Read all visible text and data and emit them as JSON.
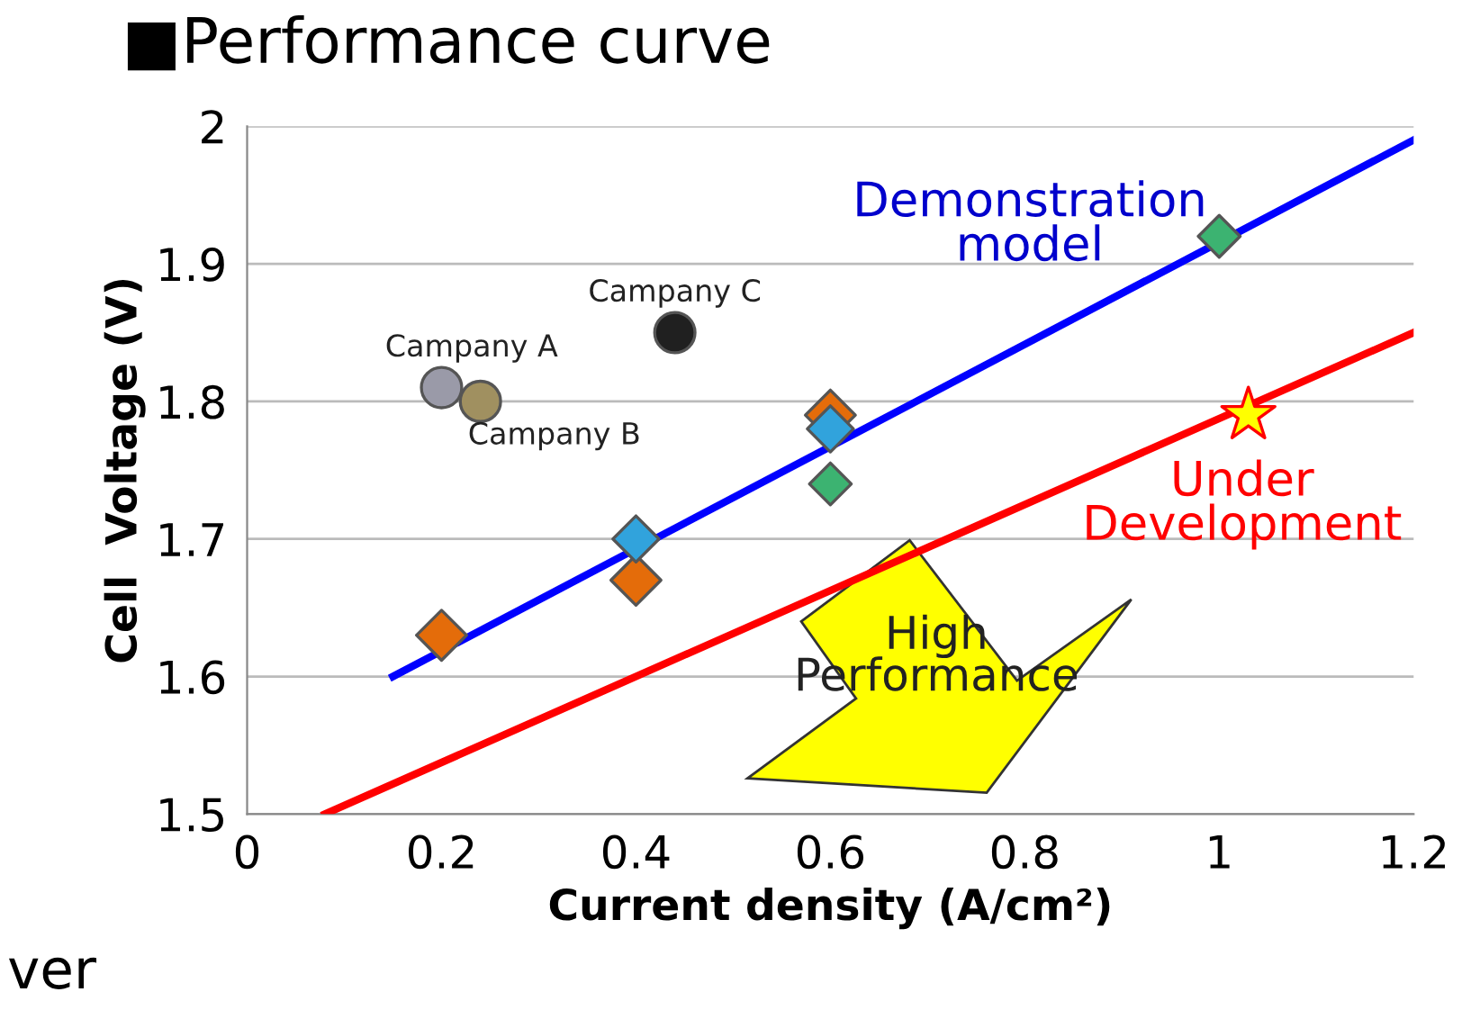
{
  "chart_data": {
    "type": "scatter",
    "title": "■Performance curve",
    "xlabel": "Current density (A/cm²)",
    "ylabel": "Cell  Voltage (V)",
    "xlim": [
      0,
      1.2
    ],
    "ylim": [
      1.5,
      2
    ],
    "xticks": [
      0,
      0.2,
      0.4,
      0.6,
      0.8,
      {
        "value": 1,
        "label": "1"
      },
      1.2
    ],
    "yticks": [
      1.5,
      1.6,
      1.7,
      1.8,
      1.9,
      {
        "value": 2,
        "label": "2"
      }
    ],
    "grid": "y",
    "legend": false,
    "series": [
      {
        "type": "line",
        "x": [
          0.15,
          1.2
        ],
        "values": [
          1.6,
          1.99
        ],
        "color": "#0000ff",
        "marker": "none",
        "line_style": "solid"
      },
      {
        "type": "line",
        "x": [
          0.08,
          1.2
        ],
        "values": [
          1.5,
          1.85
        ],
        "color": "#ff0000",
        "marker": "none",
        "line_style": "solid"
      },
      {
        "x": [
          0.2,
          0.4,
          0.6
        ],
        "values": [
          1.63,
          1.67,
          1.79
        ],
        "color": "#e46c0a",
        "marker": "diamond"
      },
      {
        "x": [
          0.4,
          0.6
        ],
        "values": [
          1.7,
          1.78
        ],
        "color": "#31a3dc",
        "marker": "diamond"
      },
      {
        "x": [
          0.6,
          1.0
        ],
        "values": [
          1.74,
          1.92
        ],
        "color": "#3cb371",
        "marker": "diamond"
      },
      {
        "x": [
          0.2,
          0.24,
          0.44
        ],
        "values": [
          1.81,
          1.8,
          1.85
        ],
        "colors": [
          "#9a9aa8",
          "#a09060",
          "#202020"
        ],
        "marker": "circle"
      },
      {
        "x": [
          1.03
        ],
        "values": [
          1.79
        ],
        "color": "#ffff00",
        "marker": "star"
      }
    ],
    "annotations": [
      "Demonstration\nmodel",
      "Under\nDevelopment",
      {
        "text": "Campany A",
        "x": 0.2,
        "y": 1.81
      },
      {
        "text": "Campany B",
        "x": 0.24,
        "y": 1.8
      },
      {
        "text": "Campany C",
        "x": 0.44,
        "y": 1.85
      },
      "High\nPerformance",
      "ver"
    ]
  }
}
